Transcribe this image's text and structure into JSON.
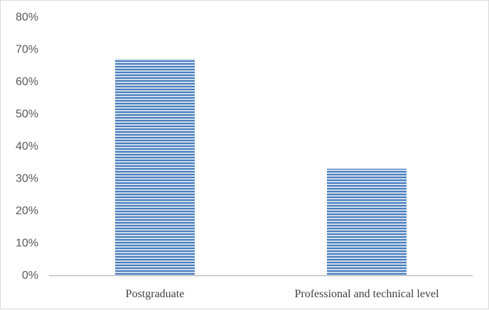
{
  "chart_data": {
    "type": "bar",
    "categories": [
      "Postgraduate",
      "Professional and technical level"
    ],
    "values": [
      67,
      33
    ],
    "ylim": [
      0,
      80
    ],
    "y_ticks": [
      0,
      10,
      20,
      30,
      40,
      50,
      60,
      70,
      80
    ],
    "y_tick_labels": [
      "0%",
      "10%",
      "20%",
      "30%",
      "40%",
      "50%",
      "60%",
      "70%",
      "80%"
    ],
    "grid": false,
    "legend": "none",
    "colors": {
      "bar_stripe": "#4a7ebb",
      "bar_fill": "#dbe6f4",
      "axis": "#bfbfbf",
      "border": "#d9d9d9"
    }
  }
}
